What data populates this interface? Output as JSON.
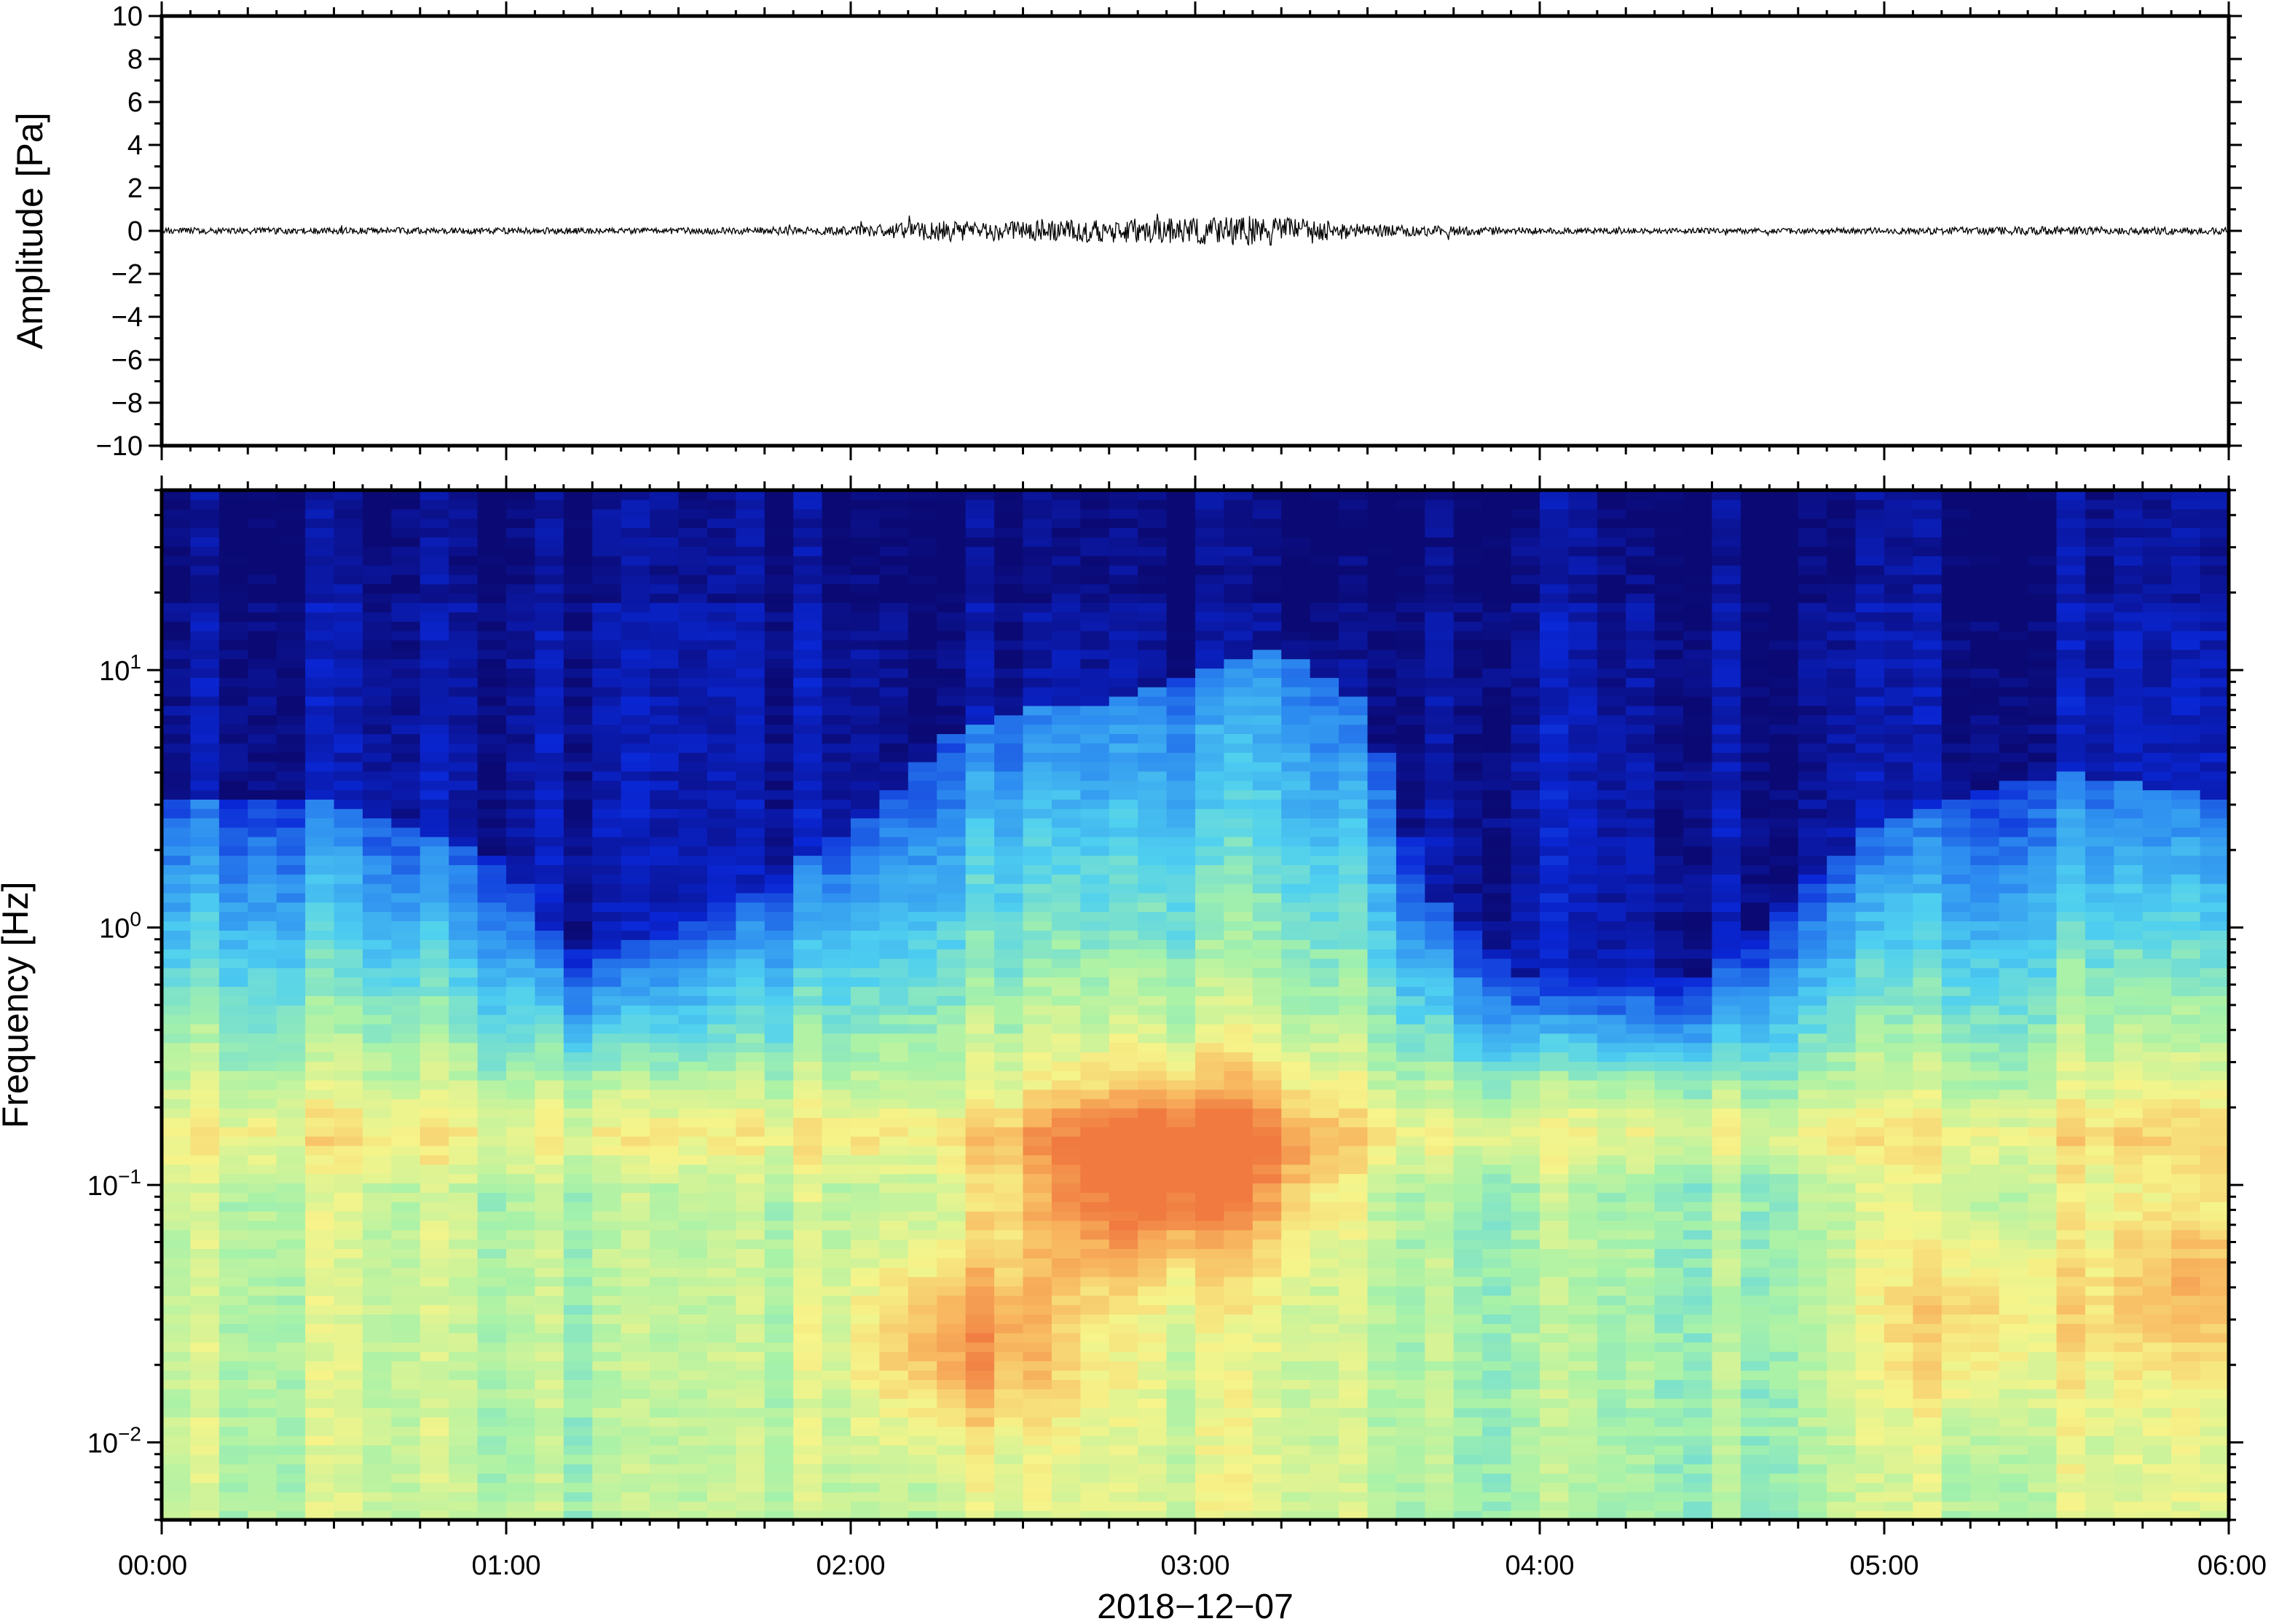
{
  "chart_data": [
    {
      "type": "line",
      "ylabel": "Amplitude [Pa]",
      "ylim": [
        -10,
        10
      ],
      "yticks": [
        "10",
        "8",
        "6",
        "4",
        "2",
        "0",
        "−2",
        "−4",
        "−6",
        "−8",
        "−10"
      ],
      "xlim": [
        "00:00",
        "06:00"
      ],
      "series": [
        {
          "x": [
            "00:00",
            "00:30",
            "01:00",
            "01:30",
            "02:00",
            "02:15",
            "02:30",
            "02:45",
            "03:00",
            "03:10",
            "03:20",
            "03:30",
            "04:00",
            "04:30",
            "05:00",
            "05:30",
            "06:00"
          ],
          "envelope": [
            0.15,
            0.15,
            0.15,
            0.15,
            0.2,
            0.5,
            0.45,
            0.55,
            0.6,
            0.75,
            0.55,
            0.3,
            0.15,
            0.12,
            0.15,
            0.2,
            0.15
          ]
        }
      ],
      "line_color": "#000000"
    },
    {
      "type": "heatmap",
      "ylabel": "Frequency [Hz]",
      "yscale": "log",
      "ylim": [
        0.005,
        50
      ],
      "yticks": [
        {
          "base": "10",
          "exp": "1"
        },
        {
          "base": "10",
          "exp": "0"
        },
        {
          "base": "10",
          "exp": "−1"
        },
        {
          "base": "10",
          "exp": "−2"
        }
      ],
      "xticks": [
        "00:00",
        "01:00",
        "02:00",
        "03:00",
        "04:00",
        "05:00",
        "06:00"
      ],
      "xlabel": "2018−12−07",
      "colormap": [
        "#0b0a74",
        "#0a27d6",
        "#2d8cf0",
        "#4fd0f0",
        "#a8f2a8",
        "#f6f48a",
        "#f8b860",
        "#f07a40"
      ],
      "activity_by_time": [
        {
          "t": "00:00",
          "v": 0.45
        },
        {
          "t": "00:30",
          "v": 0.45
        },
        {
          "t": "01:00",
          "v": 0.35
        },
        {
          "t": "01:10",
          "v": 0.18
        },
        {
          "t": "01:30",
          "v": 0.22
        },
        {
          "t": "02:00",
          "v": 0.4
        },
        {
          "t": "02:15",
          "v": 0.55
        },
        {
          "t": "02:30",
          "v": 0.62
        },
        {
          "t": "02:45",
          "v": 0.62
        },
        {
          "t": "03:00",
          "v": 0.68
        },
        {
          "t": "03:15",
          "v": 0.72
        },
        {
          "t": "03:30",
          "v": 0.62
        },
        {
          "t": "03:40",
          "v": 0.3
        },
        {
          "t": "04:00",
          "v": 0.12
        },
        {
          "t": "04:30",
          "v": 0.15
        },
        {
          "t": "04:45",
          "v": 0.3
        },
        {
          "t": "05:00",
          "v": 0.42
        },
        {
          "t": "05:30",
          "v": 0.5
        },
        {
          "t": "06:00",
          "v": 0.45
        }
      ],
      "microseism_band_hz": [
        0.12,
        0.2
      ],
      "hotspots": [
        {
          "t": "02:20",
          "f_hz": 0.025,
          "level": "high"
        },
        {
          "t": "02:45",
          "f_hz": 0.1,
          "level": "high"
        },
        {
          "t": "03:05",
          "f_hz": 0.12,
          "level": "high"
        },
        {
          "t": "05:15",
          "f_hz": 0.03,
          "level": "medium"
        },
        {
          "t": "05:55",
          "f_hz": 0.04,
          "level": "medium"
        }
      ]
    }
  ]
}
